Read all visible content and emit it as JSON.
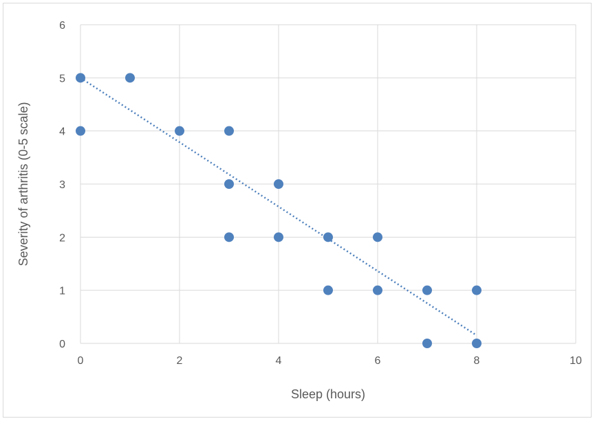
{
  "chart_data": {
    "type": "scatter",
    "title": "",
    "xlabel": "Sleep (hours)",
    "ylabel": "Severity of arthritis (0-5 scale)",
    "xlim": [
      0,
      10
    ],
    "ylim": [
      0,
      6
    ],
    "x_ticks": [
      0,
      2,
      4,
      6,
      8,
      10
    ],
    "y_ticks": [
      0,
      1,
      2,
      3,
      4,
      5,
      6
    ],
    "grid": true,
    "legend": "none",
    "colors": {
      "marker": "#4f81bd",
      "trendline": "#4f81bd",
      "grid": "#d9d9d9",
      "text": "#595959"
    },
    "points": [
      {
        "x": 0,
        "y": 5
      },
      {
        "x": 0,
        "y": 4
      },
      {
        "x": 1,
        "y": 5
      },
      {
        "x": 2,
        "y": 4
      },
      {
        "x": 3,
        "y": 4
      },
      {
        "x": 3,
        "y": 3
      },
      {
        "x": 3,
        "y": 2
      },
      {
        "x": 4,
        "y": 3
      },
      {
        "x": 4,
        "y": 2
      },
      {
        "x": 5,
        "y": 2
      },
      {
        "x": 5,
        "y": 1
      },
      {
        "x": 6,
        "y": 2
      },
      {
        "x": 6,
        "y": 1
      },
      {
        "x": 7,
        "y": 1
      },
      {
        "x": 7,
        "y": 0
      },
      {
        "x": 8,
        "y": 1
      },
      {
        "x": 8,
        "y": 0
      }
    ],
    "trendline": {
      "style": "dotted",
      "from": {
        "x": 0,
        "y": 5.0
      },
      "to": {
        "x": 8,
        "y": 0.15
      }
    }
  }
}
